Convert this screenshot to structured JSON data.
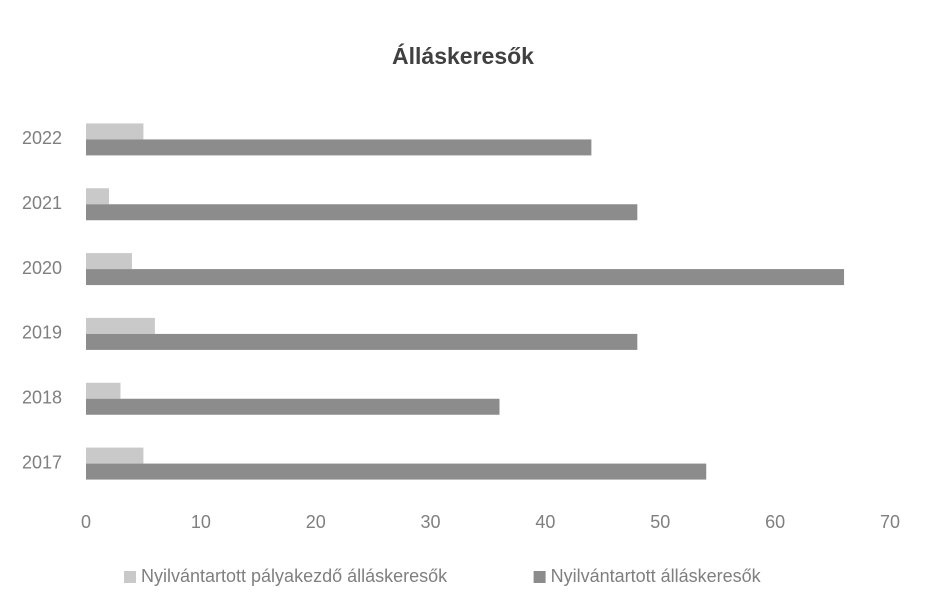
{
  "chart_data": {
    "type": "barh",
    "title": "Álláskeresők",
    "categories": [
      "2017",
      "2018",
      "2019",
      "2020",
      "2021",
      "2022"
    ],
    "series": [
      {
        "name": "Nyilvántartott pályakezdő álláskeresők",
        "color": "#c9c9c9",
        "values": [
          5,
          3,
          6,
          4,
          2,
          5
        ]
      },
      {
        "name": "Nyilvántartott álláskeresők",
        "color": "#8c8c8c",
        "values": [
          54,
          36,
          48,
          66,
          48,
          44
        ]
      }
    ],
    "xlim": [
      0,
      70
    ],
    "xticks": [
      0,
      10,
      20,
      30,
      40,
      50,
      60,
      70
    ],
    "grid": false,
    "legend": "bottom"
  }
}
